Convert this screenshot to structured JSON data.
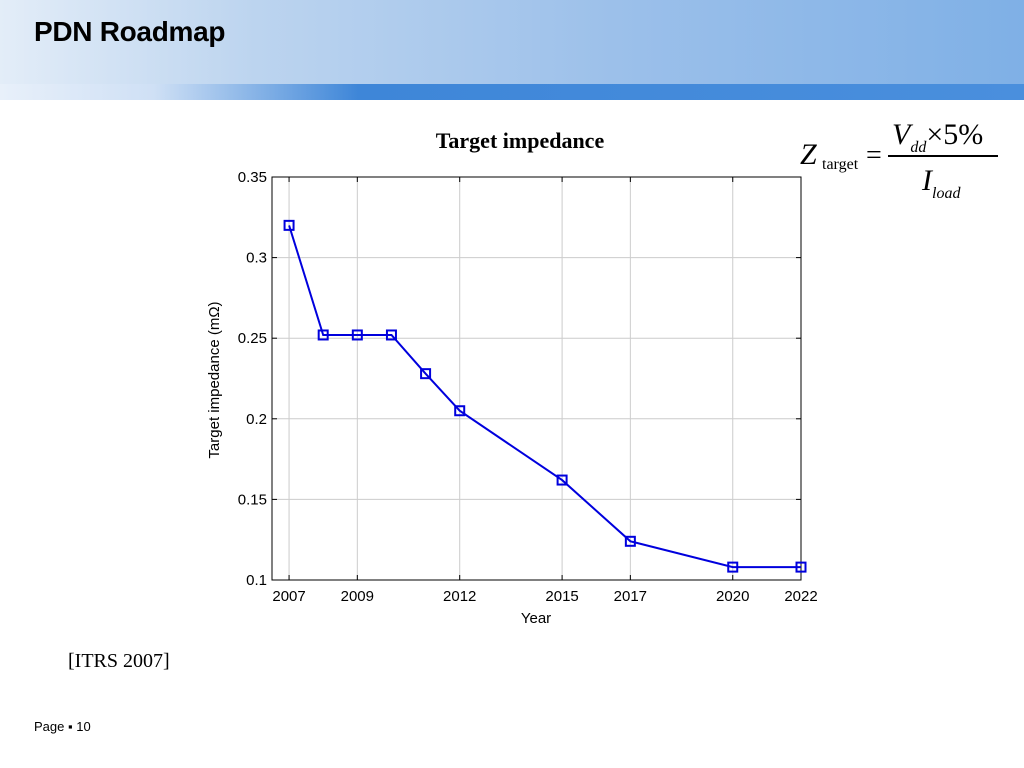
{
  "slide": {
    "title": "PDN Roadmap",
    "source": "[ITRS 2007]",
    "page_label": "Page",
    "page_separator": "▪",
    "page_number": "10"
  },
  "formula": {
    "lhs_symbol": "Z",
    "lhs_subscript": "target",
    "equals": "=",
    "numerator_symbol": "V",
    "numerator_subscript": "dd",
    "numerator_rest": "×5%",
    "denominator_symbol": "I",
    "denominator_subscript": "load"
  },
  "chart_data": {
    "type": "line",
    "title": "Target impedance",
    "xlabel": "Year",
    "ylabel": "Target impedance (mΩ)",
    "x_ticks": [
      2007,
      2009,
      2012,
      2015,
      2017,
      2020,
      2022
    ],
    "y_ticks": [
      "0.1",
      "0.15",
      "0.2",
      "0.25",
      "0.3",
      "0.35"
    ],
    "xlim": [
      2006.5,
      2022
    ],
    "ylim": [
      0.1,
      0.35
    ],
    "grid": true,
    "series": [
      {
        "marker": "square",
        "color": "#0000dd",
        "points": [
          {
            "x": 2007,
            "y": 0.32
          },
          {
            "x": 2008,
            "y": 0.252
          },
          {
            "x": 2009,
            "y": 0.252
          },
          {
            "x": 2010,
            "y": 0.252
          },
          {
            "x": 2011,
            "y": 0.228
          },
          {
            "x": 2012,
            "y": 0.205
          },
          {
            "x": 2015,
            "y": 0.162
          },
          {
            "x": 2017,
            "y": 0.124
          },
          {
            "x": 2020,
            "y": 0.108
          },
          {
            "x": 2022,
            "y": 0.108
          }
        ]
      }
    ]
  }
}
